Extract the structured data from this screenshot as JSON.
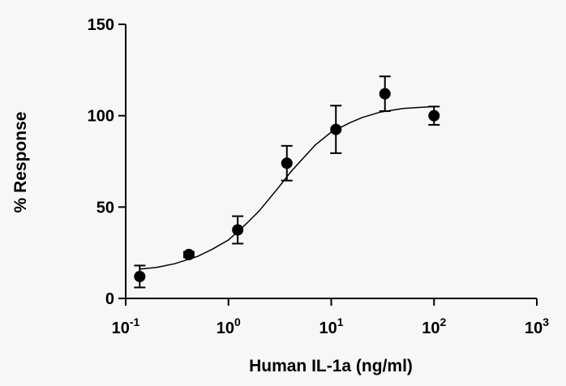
{
  "chart_data": {
    "type": "scatter",
    "x_label": "Human IL-1a (ng/ml)",
    "y_label": "% Response",
    "x_scale": "log",
    "xlim": [
      0.1,
      1000
    ],
    "ylim": [
      0,
      150
    ],
    "xticks": [
      {
        "value": 0.1,
        "label": "10",
        "exponent": "-1"
      },
      {
        "value": 1,
        "label": "10",
        "exponent": "0"
      },
      {
        "value": 10,
        "label": "10",
        "exponent": "1"
      },
      {
        "value": 100,
        "label": "10",
        "exponent": "2"
      },
      {
        "value": 1000,
        "label": "10",
        "exponent": "3"
      }
    ],
    "yticks": [
      0,
      50,
      100,
      150
    ],
    "color": "#000000",
    "x": [
      0.137,
      0.412,
      1.23,
      3.7,
      11.1,
      33.3,
      100
    ],
    "values": [
      12,
      24,
      37.5,
      74,
      92.5,
      112,
      100
    ],
    "errors": [
      6,
      1.5,
      7.5,
      9.5,
      13,
      9.5,
      5
    ],
    "fit": {
      "x": [
        0.137,
        0.2,
        0.3,
        0.5,
        0.7,
        1,
        1.5,
        2,
        3,
        4,
        5,
        7,
        10,
        15,
        20,
        30,
        50,
        100
      ],
      "y": [
        16,
        17,
        19,
        23,
        27,
        32,
        41,
        48,
        60,
        69,
        75,
        84,
        91,
        96,
        99,
        102,
        104,
        105
      ]
    }
  }
}
